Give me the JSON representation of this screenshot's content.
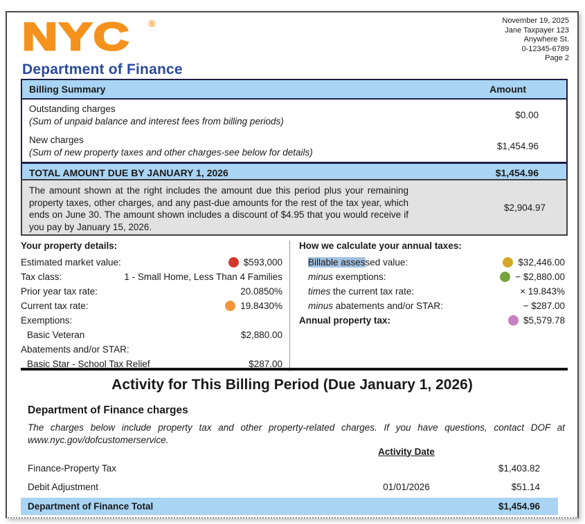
{
  "header": {
    "logo_text": "NYC",
    "registered": "®",
    "logo_subtext": "Department of Finance",
    "address_lines": [
      "November 19, 2025",
      "Jane Taxpayer 123",
      "Anywhere St.",
      "0-12345-6789",
      "Page 2"
    ]
  },
  "billing_summary": {
    "title": "Billing Summary",
    "amount_header": "Amount",
    "rows": [
      {
        "label": "Outstanding charges",
        "sublabel": "(Sum of unpaid balance and interest fees from billing periods)",
        "amount": "$0.00"
      },
      {
        "label": "New charges",
        "sublabel": "(Sum of new property taxes and other charges-see below for details)",
        "amount": "$1,454.96"
      }
    ],
    "total": {
      "label": "TOTAL AMOUNT DUE BY JANUARY 1, 2026",
      "amount": "$1,454.96"
    }
  },
  "notice": {
    "text": "The amount shown at the right includes the amount due this period plus your remaining property taxes, other charges, and any past-due amounts for the rest of the tax year, which ends on June 30. The amount shown includes a discount of $4.95 that you would receive if you pay by January 15, 2026.",
    "amount": "$2,904.97"
  },
  "property_details": {
    "title": "Your property details:",
    "rows": [
      {
        "parts": [
          {
            "t": "Estimated market value:"
          }
        ],
        "dot": "dot_red",
        "value": "$593,000"
      },
      {
        "parts": [
          {
            "t": "Tax class:"
          }
        ],
        "value": "1 - Small Home, Less Than 4 Families"
      },
      {
        "parts": [
          {
            "t": "Prior year tax rate:"
          }
        ],
        "value": "20.0850%"
      },
      {
        "parts": [
          {
            "t": "Current tax rate:"
          }
        ],
        "dot": "dot_orange",
        "value": "19.8430%"
      },
      {
        "parts": [
          {
            "t": "Exemptions:"
          }
        ]
      },
      {
        "parts": [
          {
            "t": "Basic Veteran"
          }
        ],
        "indent": true,
        "value": "$2,880.00"
      },
      {
        "parts": [
          {
            "t": "Abatements and/or STAR:"
          }
        ]
      },
      {
        "parts": [
          {
            "t": "Basic Star - School Tax Relief"
          }
        ],
        "indent": true,
        "value": "$287.00"
      }
    ]
  },
  "annual_taxes": {
    "title": "How we calculate your annual taxes:",
    "rows": [
      {
        "parts": [
          {
            "t": "Billable asses",
            "hl": true
          },
          {
            "t": "sed value:"
          }
        ],
        "indent": true,
        "dot": "dot_gold",
        "value": "$32,446.00"
      },
      {
        "parts": [
          {
            "t": "minus",
            "it": true
          },
          {
            "t": " exemptions:"
          }
        ],
        "indent": true,
        "dot": "dot_green",
        "value": "− $2,880.00"
      },
      {
        "parts": [
          {
            "t": "times",
            "it": true
          },
          {
            "t": " the current tax rate:"
          }
        ],
        "indent": true,
        "value": "× 19.843%"
      },
      {
        "parts": [
          {
            "t": "minus",
            "it": true
          },
          {
            "t": " abatements and/or STAR:"
          }
        ],
        "indent": true,
        "value": "− $287.00"
      },
      {
        "parts": [
          {
            "t": "Annual property tax:",
            "b": true
          }
        ],
        "dot": "dot_pink",
        "value": "$5,579.78"
      }
    ]
  },
  "activity": {
    "title": "Activity for This Billing Period (Due January 1, 2026)",
    "subtitle": "Department of Finance charges",
    "note": "The charges below include property tax and other property-related charges. If you have questions, contact DOF at www.nyc.gov/dofcustomerservice.",
    "date_header": "Activity Date",
    "rows": [
      {
        "label": "Finance-Property Tax",
        "date": "",
        "amount": "$1,403.82"
      },
      {
        "label": "Debit Adjustment",
        "date": "01/01/2026",
        "amount": "$51.14"
      }
    ],
    "total": {
      "label": "Department of Finance Total",
      "amount": "$1,454.96"
    }
  },
  "colors": {
    "table_header_blue": "#a9d4f3",
    "border_navy": "#1e1e48",
    "notice_gray": "#e2e2e2",
    "logo_orange": "#f5921e",
    "logo_blue": "#2a4a9e",
    "highlight_blue": "#a4c2e0",
    "dot_red": "#d2392e",
    "dot_orange": "#f2943c",
    "dot_gold": "#d2a829",
    "dot_green": "#74a53d",
    "dot_pink": "#c77fc0"
  }
}
